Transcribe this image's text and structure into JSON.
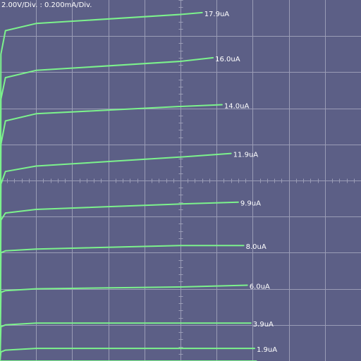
{
  "readout": {
    "scale": "2.00V/Div. : 0.200mA/Div."
  },
  "colors": {
    "background": "#5c5f86",
    "grid": "#9a9cb6",
    "trace": "#7cf28c",
    "label": "#ffffff"
  },
  "chart_data": {
    "type": "line",
    "title": "",
    "xlabel": "",
    "ylabel": "",
    "x_units": "V",
    "y_units": "mA",
    "x_per_div": 2.0,
    "y_per_div": 0.2,
    "xlim": [
      0,
      20
    ],
    "ylim": [
      0,
      2.0
    ],
    "grid": true,
    "series": [
      {
        "name": "17.9uA",
        "points": [
          [
            0,
            0
          ],
          [
            0.05,
            1.7
          ],
          [
            0.3,
            1.83
          ],
          [
            2,
            1.87
          ],
          [
            10,
            1.92
          ],
          [
            11.2,
            1.93
          ]
        ]
      },
      {
        "name": "16.0uA",
        "points": [
          [
            0,
            0
          ],
          [
            0.05,
            1.45
          ],
          [
            0.3,
            1.57
          ],
          [
            2,
            1.61
          ],
          [
            10,
            1.66
          ],
          [
            11.8,
            1.68
          ]
        ]
      },
      {
        "name": "14.0uA",
        "points": [
          [
            0,
            0
          ],
          [
            0.05,
            1.2
          ],
          [
            0.3,
            1.33
          ],
          [
            2,
            1.37
          ],
          [
            10,
            1.41
          ],
          [
            12.3,
            1.42
          ]
        ]
      },
      {
        "name": "11.9uA",
        "points": [
          [
            0,
            0
          ],
          [
            0.05,
            0.98
          ],
          [
            0.3,
            1.05
          ],
          [
            2,
            1.08
          ],
          [
            10,
            1.13
          ],
          [
            12.8,
            1.15
          ]
        ]
      },
      {
        "name": "9.9uA",
        "points": [
          [
            0,
            0
          ],
          [
            0.05,
            0.78
          ],
          [
            0.3,
            0.82
          ],
          [
            2,
            0.84
          ],
          [
            10,
            0.87
          ],
          [
            13.2,
            0.88
          ]
        ]
      },
      {
        "name": "8.0uA",
        "points": [
          [
            0,
            0
          ],
          [
            0.05,
            0.6
          ],
          [
            0.3,
            0.61
          ],
          [
            2,
            0.62
          ],
          [
            10,
            0.64
          ],
          [
            13.5,
            0.64
          ]
        ]
      },
      {
        "name": "6.0uA",
        "points": [
          [
            0,
            0
          ],
          [
            0.05,
            0.38
          ],
          [
            0.3,
            0.39
          ],
          [
            2,
            0.4
          ],
          [
            10,
            0.41
          ],
          [
            13.7,
            0.42
          ]
        ]
      },
      {
        "name": "3.9uA",
        "points": [
          [
            0,
            0
          ],
          [
            0.05,
            0.19
          ],
          [
            0.3,
            0.2
          ],
          [
            2,
            0.21
          ],
          [
            10,
            0.21
          ],
          [
            13.9,
            0.21
          ]
        ]
      },
      {
        "name": "1.9uA",
        "points": [
          [
            0,
            0
          ],
          [
            0.05,
            0.05
          ],
          [
            0.3,
            0.06
          ],
          [
            2,
            0.07
          ],
          [
            10,
            0.07
          ],
          [
            14.1,
            0.07
          ]
        ]
      },
      {
        "name": "",
        "points": [
          [
            0,
            0
          ],
          [
            2,
            0.0
          ],
          [
            10,
            0.0
          ],
          [
            14.2,
            0.0
          ]
        ]
      }
    ]
  }
}
